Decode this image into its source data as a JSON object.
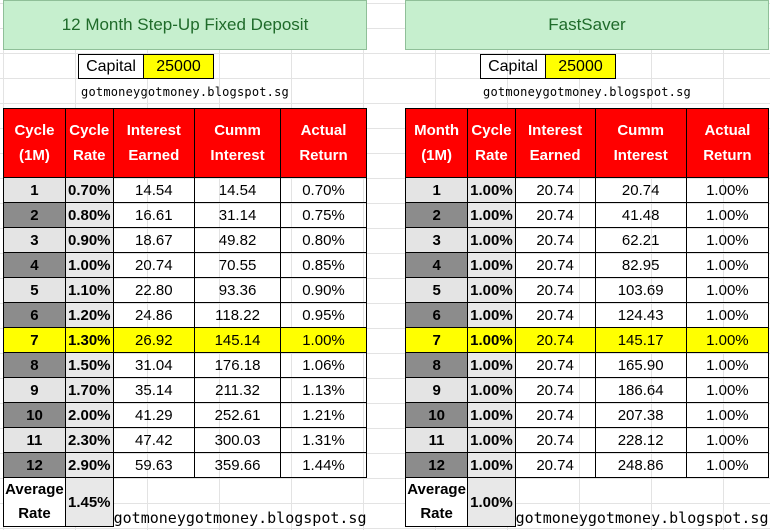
{
  "left": {
    "title": "12 Month Step-Up Fixed Deposit",
    "capital_label": "Capital",
    "capital_value": "25000",
    "site": "gotmoneygotmoney.blogspot.sg",
    "headers": [
      "Cycle (1M)",
      "Cycle Rate",
      "Interest Earned",
      "Cumm Interest",
      "Actual Return"
    ],
    "rows": [
      [
        "1",
        "0.70%",
        "14.54",
        "14.54",
        "0.70%"
      ],
      [
        "2",
        "0.80%",
        "16.61",
        "31.14",
        "0.75%"
      ],
      [
        "3",
        "0.90%",
        "18.67",
        "49.82",
        "0.80%"
      ],
      [
        "4",
        "1.00%",
        "20.74",
        "70.55",
        "0.85%"
      ],
      [
        "5",
        "1.10%",
        "22.80",
        "93.36",
        "0.90%"
      ],
      [
        "6",
        "1.20%",
        "24.86",
        "118.22",
        "0.95%"
      ],
      [
        "7",
        "1.30%",
        "26.92",
        "145.14",
        "1.00%"
      ],
      [
        "8",
        "1.50%",
        "31.04",
        "176.18",
        "1.06%"
      ],
      [
        "9",
        "1.70%",
        "35.14",
        "211.32",
        "1.13%"
      ],
      [
        "10",
        "2.00%",
        "41.29",
        "252.61",
        "1.21%"
      ],
      [
        "11",
        "2.30%",
        "47.42",
        "300.03",
        "1.31%"
      ],
      [
        "12",
        "2.90%",
        "59.63",
        "359.66",
        "1.44%"
      ]
    ],
    "highlight_row": 7,
    "avg_label_1": "Average",
    "avg_label_2": "Rate",
    "avg_value": "1.45%",
    "footer_site": "gotmoneygotmoney.blogspot.sg"
  },
  "right": {
    "title": "FastSaver",
    "capital_label": "Capital",
    "capital_value": "25000",
    "site": "gotmoneygotmoney.blogspot.sg",
    "headers": [
      "Month (1M)",
      "Cycle Rate",
      "Interest Earned",
      "Cumm Interest",
      "Actual Return"
    ],
    "rows": [
      [
        "1",
        "1.00%",
        "20.74",
        "20.74",
        "1.00%"
      ],
      [
        "2",
        "1.00%",
        "20.74",
        "41.48",
        "1.00%"
      ],
      [
        "3",
        "1.00%",
        "20.74",
        "62.21",
        "1.00%"
      ],
      [
        "4",
        "1.00%",
        "20.74",
        "82.95",
        "1.00%"
      ],
      [
        "5",
        "1.00%",
        "20.74",
        "103.69",
        "1.00%"
      ],
      [
        "6",
        "1.00%",
        "20.74",
        "124.43",
        "1.00%"
      ],
      [
        "7",
        "1.00%",
        "20.74",
        "145.17",
        "1.00%"
      ],
      [
        "8",
        "1.00%",
        "20.74",
        "165.90",
        "1.00%"
      ],
      [
        "9",
        "1.00%",
        "20.74",
        "186.64",
        "1.00%"
      ],
      [
        "10",
        "1.00%",
        "20.74",
        "207.38",
        "1.00%"
      ],
      [
        "11",
        "1.00%",
        "20.74",
        "228.12",
        "1.00%"
      ],
      [
        "12",
        "1.00%",
        "20.74",
        "248.86",
        "1.00%"
      ]
    ],
    "highlight_row": 7,
    "avg_label_1": "Average",
    "avg_label_2": "Rate",
    "avg_value": "1.00%",
    "footer_site": "gotmoneygotmoney.blogspot.sg"
  },
  "colors": {
    "header_red": "#ff0000",
    "title_green": "#c6efce",
    "highlight_yellow": "#ffff00",
    "dark_gray": "#8c8c8c",
    "light_gray": "#e4e4e4"
  }
}
